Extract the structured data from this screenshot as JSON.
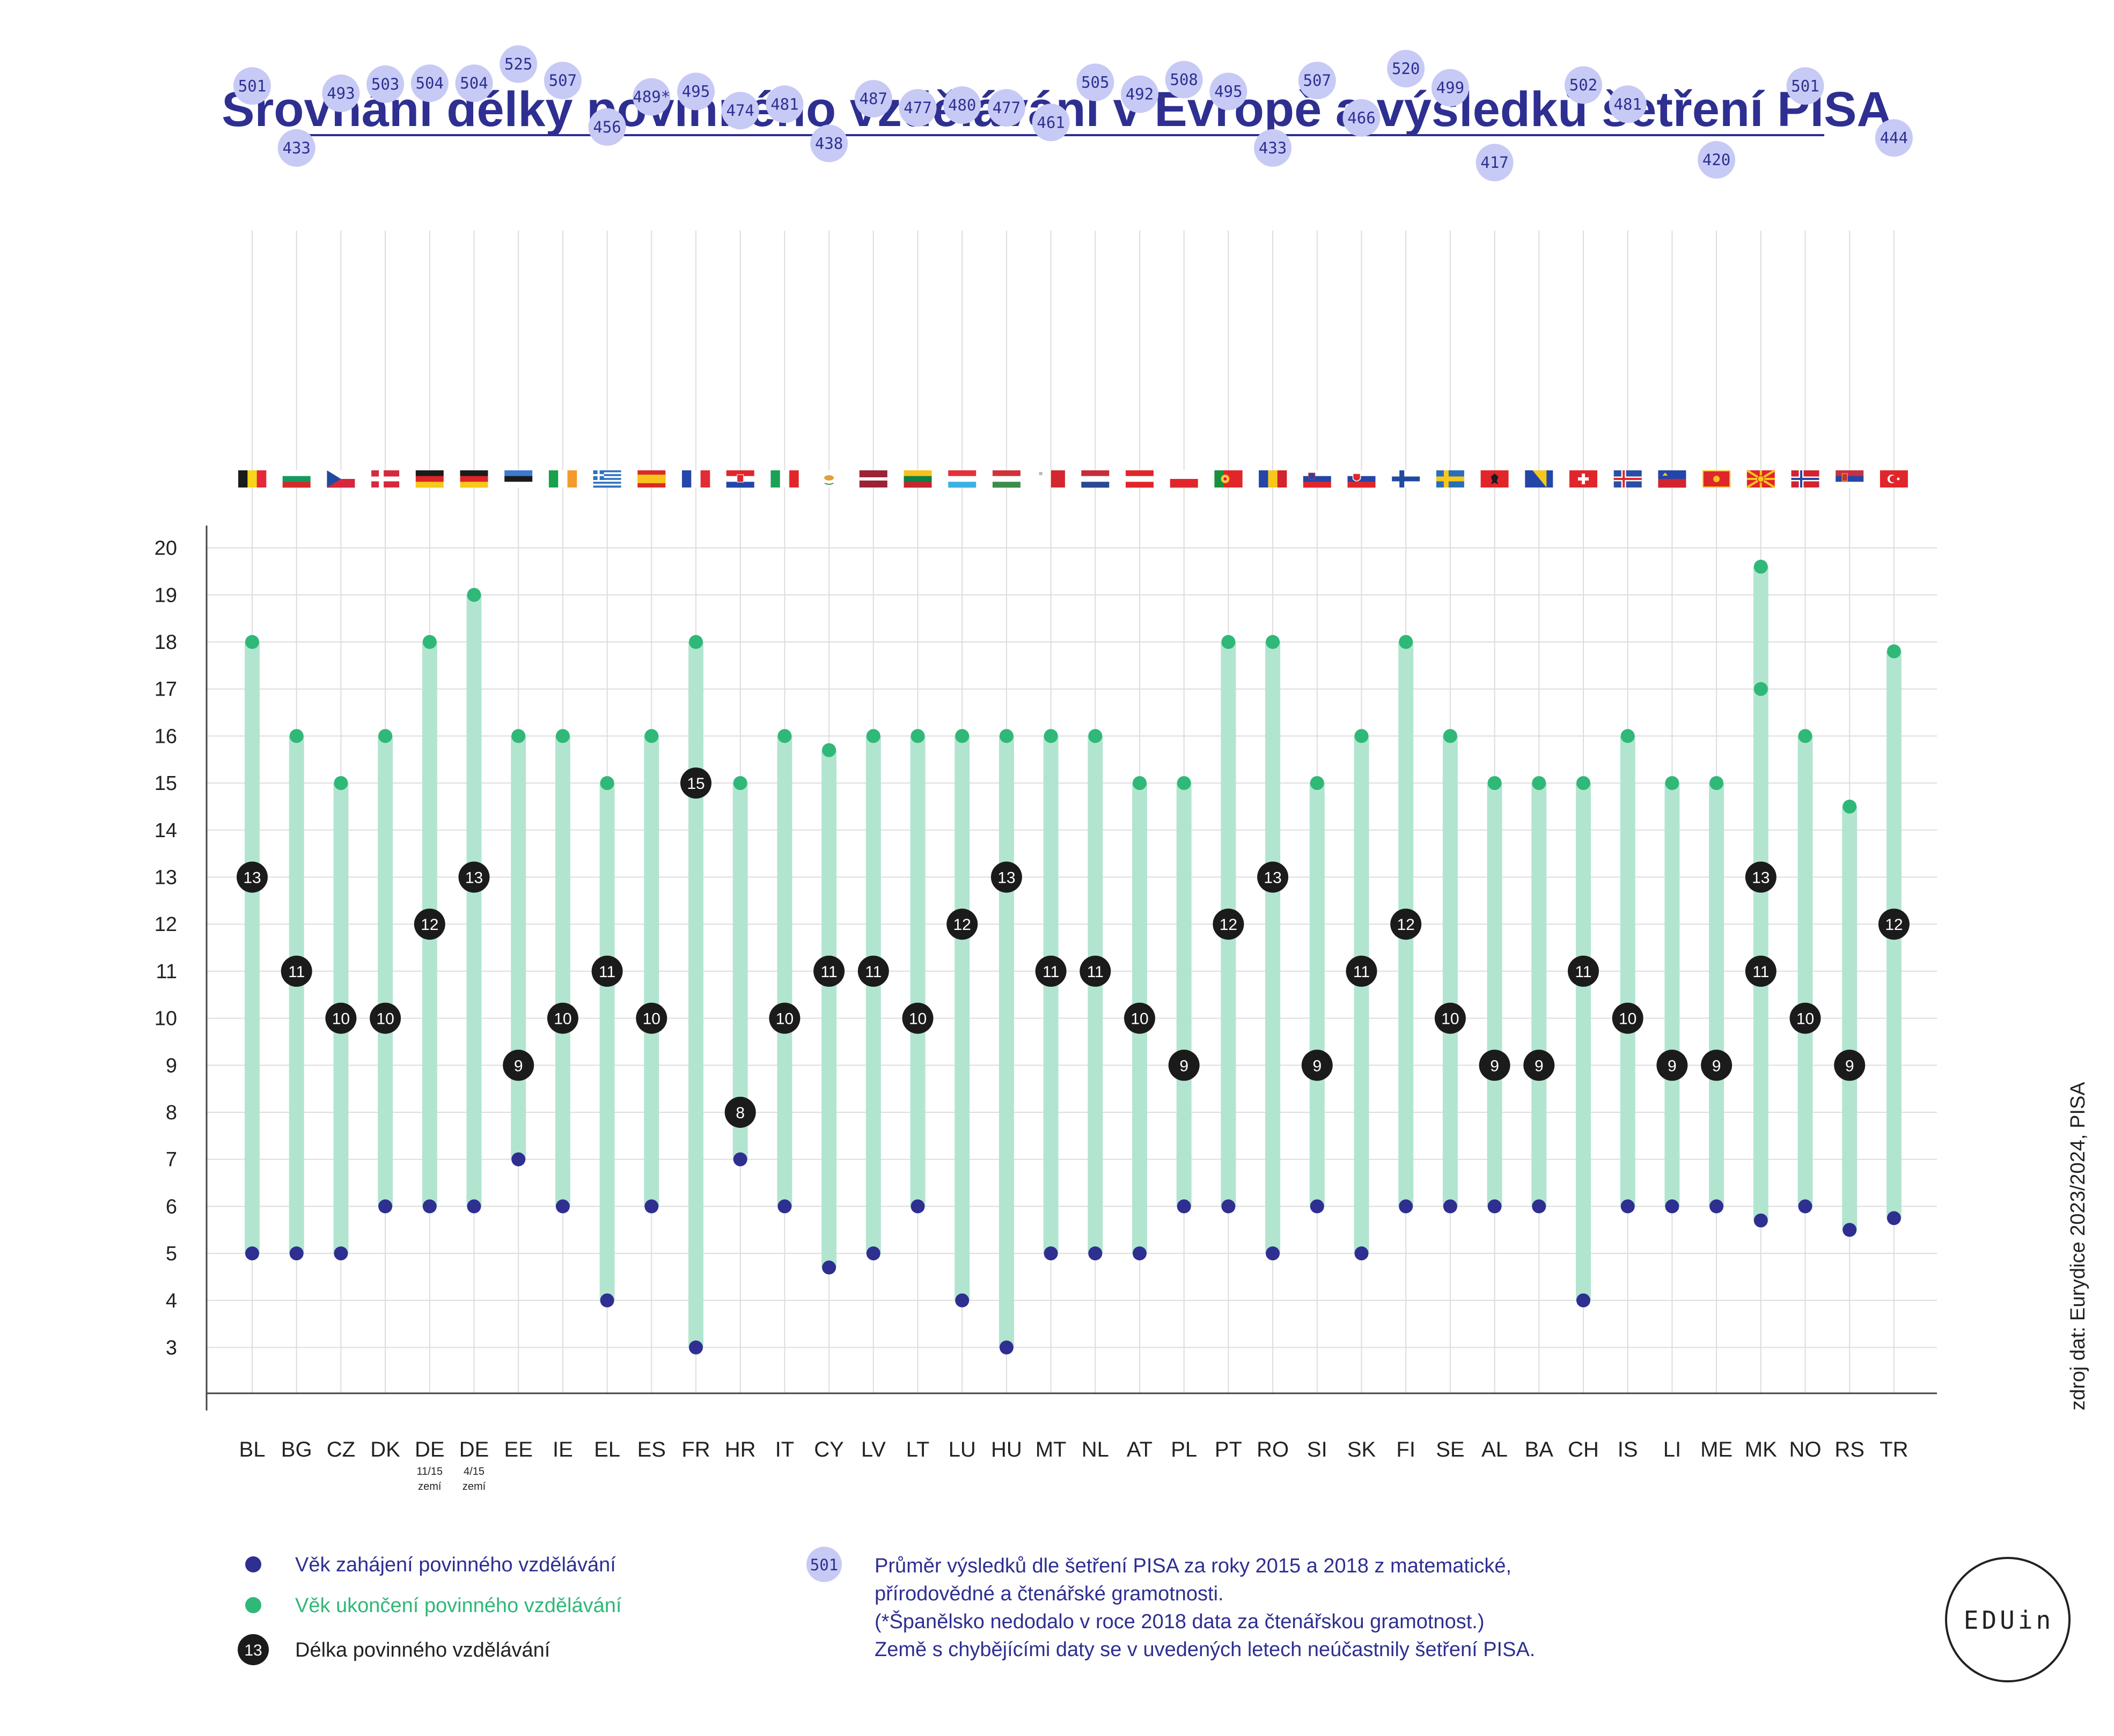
{
  "title": "Srovnání délky povinného vzdělávání v Evropě a výsledků šetření PISA",
  "source": "zdroj dat: Eurydice 2023/2024, PISA",
  "logo": "EDUin",
  "colors": {
    "title": "#2e2f91",
    "start_dot": "#2e2f91",
    "end_dot": "#2fb877",
    "bar": "#b2e5cf",
    "length_circle": "#1b1b1b",
    "pisa_circle": "#c7caf5",
    "pisa_text": "#2e2f91",
    "grid": "#dddddd"
  },
  "chart_data": {
    "type": "range-bar",
    "y_ticks": [
      3,
      4,
      5,
      6,
      7,
      8,
      9,
      10,
      11,
      12,
      13,
      14,
      15,
      16,
      17,
      18,
      19,
      20
    ],
    "ylim": [
      2,
      21
    ],
    "grid": true,
    "countries": [
      {
        "code": "BL",
        "sub": [],
        "flag": "be",
        "start": 5,
        "end": 18,
        "length": [
          13
        ],
        "pisa": "501"
      },
      {
        "code": "BG",
        "sub": [],
        "flag": "bg",
        "start": 5,
        "end": 16,
        "length": [
          11
        ],
        "pisa": "433"
      },
      {
        "code": "CZ",
        "sub": [],
        "flag": "cz",
        "start": 5,
        "end": 15,
        "length": [
          10
        ],
        "pisa": "493"
      },
      {
        "code": "DK",
        "sub": [],
        "flag": "dk",
        "start": 6,
        "end": 16,
        "length": [
          10
        ],
        "pisa": "503"
      },
      {
        "code": "DE",
        "sub": [
          "11/15",
          "zemí"
        ],
        "flag": "de",
        "start": 6,
        "end": 18,
        "length": [
          12
        ],
        "pisa": "504"
      },
      {
        "code": "DE",
        "sub": [
          "4/15",
          "zemí"
        ],
        "flag": "de",
        "start": 6,
        "end": 19,
        "length": [
          13
        ],
        "pisa": "504"
      },
      {
        "code": "EE",
        "sub": [],
        "flag": "ee",
        "start": 7,
        "end": 16,
        "length": [
          9
        ],
        "pisa": "525"
      },
      {
        "code": "IE",
        "sub": [],
        "flag": "ie",
        "start": 6,
        "end": 16,
        "length": [
          10
        ],
        "pisa": "507"
      },
      {
        "code": "EL",
        "sub": [],
        "flag": "gr",
        "start": 4,
        "end": 15,
        "length": [
          11
        ],
        "pisa": "456"
      },
      {
        "code": "ES",
        "sub": [],
        "flag": "es",
        "start": 6,
        "end": 16,
        "length": [
          10
        ],
        "pisa": "489*"
      },
      {
        "code": "FR",
        "sub": [],
        "flag": "fr",
        "start": 3,
        "end": 18,
        "length": [
          15
        ],
        "pisa": "495"
      },
      {
        "code": "HR",
        "sub": [],
        "flag": "hr",
        "start": 7,
        "end": 15,
        "length": [
          8
        ],
        "pisa": "474"
      },
      {
        "code": "IT",
        "sub": [],
        "flag": "it",
        "start": 6,
        "end": 16,
        "length": [
          10
        ],
        "pisa": "481"
      },
      {
        "code": "CY",
        "sub": [],
        "flag": "cy",
        "start": 4.7,
        "end": 15.7,
        "length": [
          11
        ],
        "pisa": "438"
      },
      {
        "code": "LV",
        "sub": [],
        "flag": "lv",
        "start": 5,
        "end": 16,
        "length": [
          11
        ],
        "pisa": "487"
      },
      {
        "code": "LT",
        "sub": [],
        "flag": "lt",
        "start": 6,
        "end": 16,
        "length": [
          10
        ],
        "pisa": "477"
      },
      {
        "code": "LU",
        "sub": [],
        "flag": "lu",
        "start": 4,
        "end": 16,
        "length": [
          12
        ],
        "pisa": "480"
      },
      {
        "code": "HU",
        "sub": [],
        "flag": "hu",
        "start": 3,
        "end": 16,
        "length": [
          13
        ],
        "pisa": "477"
      },
      {
        "code": "MT",
        "sub": [],
        "flag": "mt",
        "start": 5,
        "end": 16,
        "length": [
          11
        ],
        "pisa": "461"
      },
      {
        "code": "NL",
        "sub": [],
        "flag": "nl",
        "start": 5,
        "end": 16,
        "length": [
          11
        ],
        "pisa": "505"
      },
      {
        "code": "AT",
        "sub": [],
        "flag": "at",
        "start": 5,
        "end": 15,
        "length": [
          10
        ],
        "pisa": "492"
      },
      {
        "code": "PL",
        "sub": [],
        "flag": "pl",
        "start": 6,
        "end": 15,
        "length": [
          9
        ],
        "pisa": "508"
      },
      {
        "code": "PT",
        "sub": [],
        "flag": "pt",
        "start": 6,
        "end": 18,
        "length": [
          12
        ],
        "pisa": "495"
      },
      {
        "code": "RO",
        "sub": [],
        "flag": "ro",
        "start": 5,
        "end": 18,
        "length": [
          13
        ],
        "pisa": "433"
      },
      {
        "code": "SI",
        "sub": [],
        "flag": "si",
        "start": 6,
        "end": 15,
        "length": [
          9
        ],
        "pisa": "507"
      },
      {
        "code": "SK",
        "sub": [],
        "flag": "sk",
        "start": 5,
        "end": 16,
        "length": [
          11
        ],
        "pisa": "466"
      },
      {
        "code": "FI",
        "sub": [],
        "flag": "fi",
        "start": 6,
        "end": 18,
        "length": [
          12
        ],
        "pisa": "520"
      },
      {
        "code": "SE",
        "sub": [],
        "flag": "se",
        "start": 6,
        "end": 16,
        "length": [
          10
        ],
        "pisa": "499"
      },
      {
        "code": "AL",
        "sub": [],
        "flag": "al",
        "start": 6,
        "end": 15,
        "length": [
          9
        ],
        "pisa": "417"
      },
      {
        "code": "BA",
        "sub": [],
        "flag": "ba",
        "start": 6,
        "end": 15,
        "length": [
          9
        ],
        "pisa": ""
      },
      {
        "code": "CH",
        "sub": [],
        "flag": "ch",
        "start": 4,
        "end": 15,
        "length": [
          11
        ],
        "pisa": "502"
      },
      {
        "code": "IS",
        "sub": [],
        "flag": "is",
        "start": 6,
        "end": 16,
        "length": [
          10
        ],
        "pisa": "481"
      },
      {
        "code": "LI",
        "sub": [],
        "flag": "li",
        "start": 6,
        "end": 15,
        "length": [
          9
        ],
        "pisa": ""
      },
      {
        "code": "ME",
        "sub": [],
        "flag": "me",
        "start": 6,
        "end": 15,
        "length": [
          9
        ],
        "pisa": "420"
      },
      {
        "code": "MK",
        "sub": [],
        "flag": "mk",
        "start": 5.7,
        "end": 19.6,
        "end2": 17,
        "length": [
          13,
          11
        ],
        "pisa": ""
      },
      {
        "code": "NO",
        "sub": [],
        "flag": "no",
        "start": 6,
        "end": 16,
        "length": [
          10
        ],
        "pisa": "501"
      },
      {
        "code": "RS",
        "sub": [],
        "flag": "rs",
        "start": 5.5,
        "end": 14.5,
        "length": [
          9
        ],
        "pisa": ""
      },
      {
        "code": "TR",
        "sub": [],
        "flag": "tr",
        "start": 5.75,
        "end": 17.8,
        "length": [
          12
        ],
        "pisa": "444"
      }
    ]
  },
  "legend": {
    "start_label": "Věk zahájení povinného vzdělávání",
    "end_label": "Věk ukončení povinného vzdělávání",
    "length_label": "Délka povinného vzdělávání",
    "length_sample": "13",
    "pisa_sample": "501",
    "pisa_lines": [
      "Průměr výsledků dle šetření PISA za roky 2015 a 2018 z matematické,",
      "přírodovědné a čtenářské gramotnosti.",
      "(*Španělsko nedodalo v roce 2018 data za čtenářskou gramotnost.)",
      "Země s chybějícími daty se v uvedených letech neúčastnily šetření PISA."
    ]
  }
}
